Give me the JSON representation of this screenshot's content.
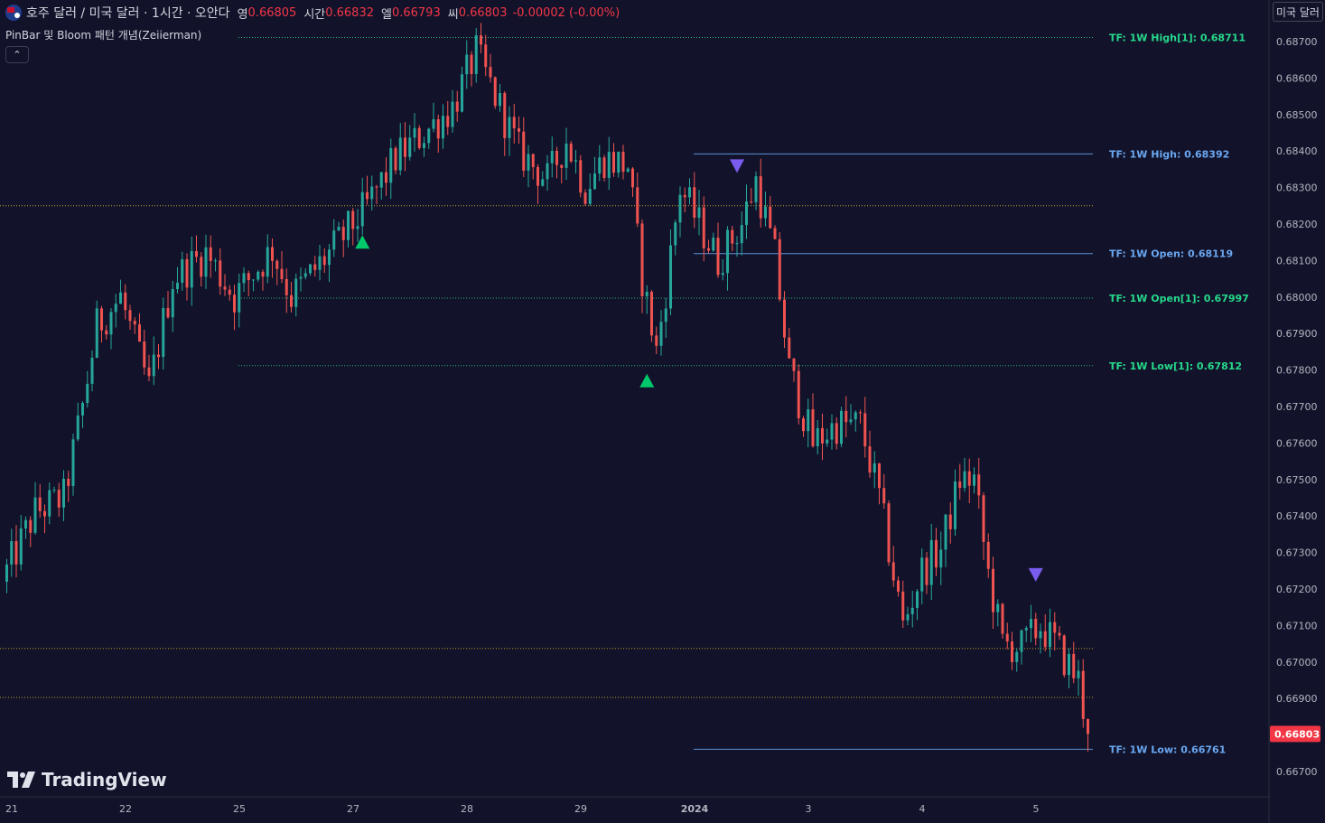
{
  "header": {
    "symbol": "호주 달러 / 미국 달러 · 1시간 · 오안다",
    "open_label": "영",
    "open_value": "0.66805",
    "high_label": "시간",
    "high_value": "0.66832",
    "low_label": "엘",
    "low_value": "0.66793",
    "close_label": "씨",
    "close_value": "0.66803",
    "change": "-0.00002 (-0.00%)",
    "icon": "aud-usd-flag-icon"
  },
  "indicator": {
    "name": "PinBar 및 Bloom 패턴 개념(Zeiierman)",
    "collapse_icon": "chevron-up-icon"
  },
  "currency_button": "미국 달러",
  "logo_text": "TradingView",
  "colors": {
    "background": "#12132b",
    "up": "#26a69a",
    "down": "#ef5350",
    "pin_up": "#00c96b",
    "pin_down": "#7b5cf0",
    "level_green": "#26d98a",
    "level_blue": "#6aa7f0",
    "price_tag": "#f23645"
  },
  "chart_data": {
    "type": "candlestick",
    "y_axis": {
      "ylim": [
        0.6664,
        0.68745
      ],
      "ticks": [
        "0.66700",
        "0.66800",
        "0.66900",
        "0.67000",
        "0.67100",
        "0.67200",
        "0.67300",
        "0.67400",
        "0.67500",
        "0.67600",
        "0.67700",
        "0.67800",
        "0.67900",
        "0.68000",
        "0.68100",
        "0.68200",
        "0.68300",
        "0.68400",
        "0.68500",
        "0.68600",
        "0.68700"
      ]
    },
    "x_axis": {
      "ticks": [
        {
          "label": "21",
          "bar": 0,
          "bold": false
        },
        {
          "label": "22",
          "bar": 24,
          "bold": false
        },
        {
          "label": "25",
          "bar": 48,
          "bold": false
        },
        {
          "label": "27",
          "bar": 72,
          "bold": false
        },
        {
          "label": "28",
          "bar": 96,
          "bold": false
        },
        {
          "label": "29",
          "bar": 120,
          "bold": false
        },
        {
          "label": "2024",
          "bar": 144,
          "bold": true
        },
        {
          "label": "3",
          "bar": 168,
          "bold": false
        },
        {
          "label": "4",
          "bar": 192,
          "bold": false
        },
        {
          "label": "5",
          "bar": 216,
          "bold": false
        }
      ]
    },
    "anchors": [
      [
        0,
        0.6725
      ],
      [
        6,
        0.6741
      ],
      [
        12,
        0.6745
      ],
      [
        16,
        0.677
      ],
      [
        19,
        0.6792
      ],
      [
        24,
        0.68
      ],
      [
        30,
        0.6775
      ],
      [
        35,
        0.6805
      ],
      [
        42,
        0.6812
      ],
      [
        48,
        0.68
      ],
      [
        56,
        0.6813
      ],
      [
        60,
        0.68
      ],
      [
        70,
        0.6815
      ],
      [
        76,
        0.6825
      ],
      [
        82,
        0.6838
      ],
      [
        88,
        0.6845
      ],
      [
        94,
        0.6852
      ],
      [
        99,
        0.6867
      ],
      [
        104,
        0.6852
      ],
      [
        108,
        0.684
      ],
      [
        114,
        0.6832
      ],
      [
        118,
        0.6843
      ],
      [
        122,
        0.683
      ],
      [
        126,
        0.6838
      ],
      [
        131,
        0.6836
      ],
      [
        134,
        0.6805
      ],
      [
        137,
        0.6785
      ],
      [
        139,
        0.6802
      ],
      [
        142,
        0.683
      ],
      [
        146,
        0.682
      ],
      [
        150,
        0.681
      ],
      [
        155,
        0.682
      ],
      [
        158,
        0.6832
      ],
      [
        162,
        0.6811
      ],
      [
        165,
        0.678
      ],
      [
        170,
        0.676
      ],
      [
        175,
        0.6765
      ],
      [
        180,
        0.6765
      ],
      [
        184,
        0.6745
      ],
      [
        189,
        0.671
      ],
      [
        193,
        0.6725
      ],
      [
        197,
        0.6731
      ],
      [
        201,
        0.675
      ],
      [
        204,
        0.675
      ],
      [
        207,
        0.6724
      ],
      [
        210,
        0.6705
      ],
      [
        214,
        0.6704
      ],
      [
        218,
        0.671
      ],
      [
        221,
        0.6705
      ],
      [
        226,
        0.6695
      ],
      [
        228,
        0.668
      ]
    ],
    "bars": 229,
    "last_price": 0.66803,
    "week_levels": [
      {
        "label": "TF: 1W High[1]: 0.68711",
        "value": 0.68711,
        "color": "green",
        "style": "dotted",
        "from_bar": 48
      },
      {
        "label": "TF: 1W High: 0.68392",
        "value": 0.68392,
        "color": "blue",
        "style": "solid",
        "from_bar": 144
      },
      {
        "label": "TF: 1W Open: 0.68119",
        "value": 0.68119,
        "color": "blue",
        "style": "solid",
        "from_bar": 144
      },
      {
        "label": "TF: 1W Open[1]: 0.67997",
        "value": 0.67997,
        "color": "green",
        "style": "dotted",
        "from_bar": 48
      },
      {
        "label": "TF: 1W Low[1]: 0.67812",
        "value": 0.67812,
        "color": "green",
        "style": "dotted",
        "from_bar": 48
      },
      {
        "label": "TF: 1W Low: 0.66761",
        "value": 0.66761,
        "color": "blue",
        "style": "solid",
        "from_bar": 144
      }
    ],
    "horizontal_lines": [
      {
        "value": 0.6825,
        "color": "#c9a227"
      },
      {
        "value": 0.67037,
        "color": "#c9a227"
      },
      {
        "value": 0.66903,
        "color": "#c9a227"
      }
    ],
    "pin_markers": [
      {
        "type": "bullish",
        "bar": 75,
        "price": 0.6815
      },
      {
        "type": "bearish",
        "bar": 154,
        "price": 0.6836
      },
      {
        "type": "bullish",
        "bar": 135,
        "price": 0.6777
      },
      {
        "type": "bearish",
        "bar": 217,
        "price": 0.6724
      }
    ]
  }
}
